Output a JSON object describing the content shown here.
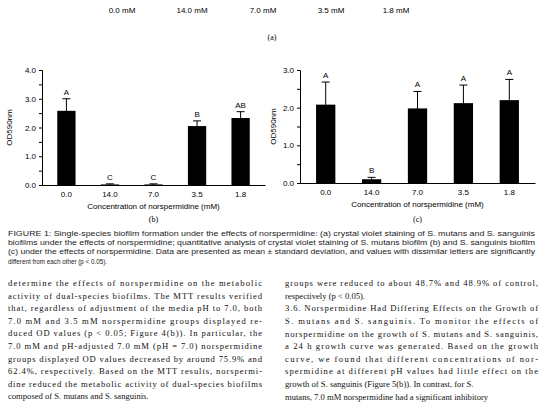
{
  "chart_data": [
    {
      "type": "bar",
      "title": "(b)",
      "categories": [
        "0.0",
        "14.0",
        "7.0",
        "3.5",
        "1.8"
      ],
      "values": [
        2.58,
        0.02,
        0.02,
        2.05,
        2.33
      ],
      "errors": [
        0.42,
        0.02,
        0.02,
        0.18,
        0.22
      ],
      "annotations": [
        "A",
        "C",
        "C",
        "B",
        "AB"
      ],
      "color": "#000000",
      "x_label": "Concentration of norspermidine (mM)",
      "y_label": "OD590nm",
      "ylim": [
        0,
        4
      ],
      "yticks": [
        {
          "value": 0,
          "label": "0.0"
        },
        {
          "value": 0.5,
          "label": ""
        },
        {
          "value": 1,
          "label": "1.0"
        },
        {
          "value": 1.5,
          "label": ""
        },
        {
          "value": 2,
          "label": "2.0"
        },
        {
          "value": 2.5,
          "label": ""
        },
        {
          "value": 3,
          "label": "3.0"
        },
        {
          "value": 3.5,
          "label": ""
        },
        {
          "value": 4,
          "label": "4.0"
        }
      ]
    },
    {
      "type": "bar",
      "title": "(c)",
      "categories": [
        "0.0",
        "14.0",
        "7.0",
        "3.5",
        "1.8"
      ],
      "values": [
        2.08,
        0.1,
        1.98,
        2.12,
        2.2
      ],
      "errors": [
        0.6,
        0.05,
        0.45,
        0.48,
        0.55
      ],
      "annotations": [
        "A",
        "B",
        "A",
        "A",
        "A"
      ],
      "color": "#000000",
      "x_label": "Concentration of norspermidine (mM)",
      "y_label": "OD590nm",
      "ylim": [
        0,
        3
      ],
      "yticks": [
        {
          "value": 0,
          "label": "0.0"
        },
        {
          "value": 0.5,
          "label": ""
        },
        {
          "value": 1,
          "label": "1.0"
        },
        {
          "value": 1.5,
          "label": ""
        },
        {
          "value": 2,
          "label": "2.0"
        },
        {
          "value": 2.5,
          "label": ""
        },
        {
          "value": 3,
          "label": "3.0"
        }
      ]
    }
  ],
  "figure": {
    "panel_labels": [
      "0.0 mM",
      "14.0 mM",
      "7.0 mM",
      "3.5 mM",
      "1.8 mM"
    ],
    "panel_a": "(a)",
    "caption": [
      "FIGURE 1: Single-species biofilm formation under the effects of norspermidine: (a) crystal violet staining of S. mutans and S. sanguinis",
      "biofilms under the effects of norspermidine; quantitative analysis of crystal violet staining of S. mutans biofilm (b) and S. sanguinis biofilm",
      "(c) under the effects of norspermidine. Data are presented as mean ± standard deviation, and values with dissimilar letters are significantly",
      "different from each other (p < 0.05)."
    ]
  },
  "body": {
    "left": [
      "determine the effects of norspermidine on the metabolic",
      "activity of dual-species biofilms. The MTT results verified",
      "that, regardless of adjustment of the media pH to 7.0, both",
      "7.0 mM and 3.5 mM norspermidine groups displayed re-",
      "duced OD values (p < 0.05; Figure 4(b)). In particular, the",
      "7.0 mM and pH-adjusted 7.0 mM (pH = 7.0) norspermidine",
      "groups displayed OD values decreased by around 75.9% and",
      "62.4%, respectively. Based on the MTT results, norspermi-",
      "dine reduced the metabolic activity of dual-species biofilms",
      "composed of S. mutans and S. sanguinis."
    ],
    "right": [
      "groups were reduced to about 48.7% and 48.9% of control,",
      "respectively (p < 0.05).",
      "3.6. Norspermidine Had Differing Effects on the Growth of",
      "S. mutans and S. sanguinis. To monitor the effects of",
      "norspermidine on the growth of S. mutans and S. sanguinis,",
      "a 24 h growth curve was generated. Based on the growth",
      "curve, we found that different concentrations of nor-",
      "spermidine at different pH values had little effect on the",
      "growth of S. sanguinis (Figure 5(b)). In contrast, for S.",
      "mutans, 7.0 mM norspermidine had a significant inhibitory"
    ]
  }
}
